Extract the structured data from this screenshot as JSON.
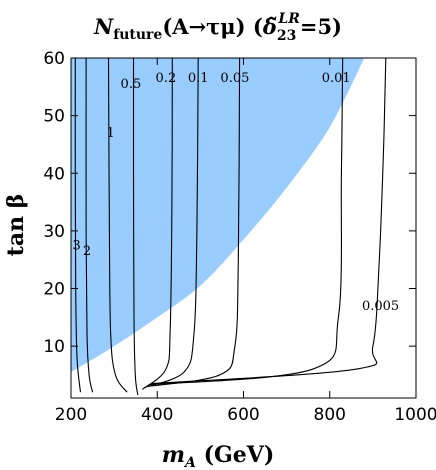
{
  "chart_data": {
    "type": "contour",
    "title": {
      "prefix": "N",
      "sub": "future",
      "main": "(A→τμ) (",
      "delta": "δ̃",
      "delta_sub": "23",
      "delta_sup": "LR",
      "tail": "=5)"
    },
    "xlabel": {
      "var": "m",
      "sub": "A",
      "unit": " (GeV)"
    },
    "ylabel": {
      "text": "tan β"
    },
    "xlim": [
      200,
      1000
    ],
    "ylim": [
      1,
      60
    ],
    "xticks": [
      200,
      400,
      600,
      800,
      1000
    ],
    "yticks": [
      10,
      20,
      30,
      40,
      50,
      60
    ],
    "grid": false,
    "excluded_region": {
      "color": "#99ccff",
      "boundary": [
        [
          200,
          5.5
        ],
        [
          300,
          10
        ],
        [
          400,
          15
        ],
        [
          500,
          20.5
        ],
        [
          600,
          28.5
        ],
        [
          700,
          37.5
        ],
        [
          800,
          48
        ],
        [
          880,
          60
        ]
      ]
    },
    "contours": [
      {
        "label": "3",
        "label_at": [
          213,
          27.5
        ],
        "points": [
          [
            222,
            2
          ],
          [
            214,
            8
          ],
          [
            211,
            20
          ],
          [
            210,
            40
          ],
          [
            210,
            60
          ]
        ]
      },
      {
        "label": "2",
        "label_at": [
          237,
          26.5
        ],
        "points": [
          [
            250,
            2
          ],
          [
            242,
            5
          ],
          [
            237,
            12
          ],
          [
            235,
            30
          ],
          [
            235,
            60
          ]
        ]
      },
      {
        "label": "1",
        "label_at": [
          292,
          47
        ],
        "points": [
          [
            330,
            2
          ],
          [
            303,
            5
          ],
          [
            292,
            12
          ],
          [
            289,
            30
          ],
          [
            287,
            60
          ]
        ]
      },
      {
        "label": "0.5",
        "label_at": [
          339,
          55.5
        ],
        "points": [
          [
            355,
            1.5
          ],
          [
            349,
            5
          ],
          [
            346,
            15
          ],
          [
            345,
            40
          ],
          [
            345,
            60
          ]
        ]
      },
      {
        "label": "0.2",
        "label_at": [
          420,
          56.5
        ],
        "points": [
          [
            365,
            2.5
          ],
          [
            420,
            6
          ],
          [
            430,
            13
          ],
          [
            434,
            35
          ],
          [
            435,
            60
          ]
        ]
      },
      {
        "label": "0.1",
        "label_at": [
          495,
          56.5
        ],
        "points": [
          [
            370,
            2.8
          ],
          [
            462,
            5.5
          ],
          [
            485,
            12
          ],
          [
            492,
            30
          ],
          [
            495,
            60
          ]
        ]
      },
      {
        "label": "0.05",
        "label_at": [
          580,
          56.5
        ],
        "points": [
          [
            375,
            3
          ],
          [
            545,
            5
          ],
          [
            580,
            10
          ],
          [
            588,
            25
          ],
          [
            591,
            60
          ]
        ]
      },
      {
        "label": "0.01",
        "label_at": [
          815,
          56.5
        ],
        "points": [
          [
            380,
            3.3
          ],
          [
            760,
            6
          ],
          [
            820,
            15
          ],
          [
            827,
            40
          ],
          [
            830,
            60
          ]
        ]
      },
      {
        "label": "0.005",
        "label_at": [
          918,
          17
        ],
        "points": [
          [
            385,
            3.5
          ],
          [
            860,
            6
          ],
          [
            900,
            10
          ],
          [
            915,
            25
          ],
          [
            925,
            45
          ],
          [
            930,
            60
          ]
        ]
      }
    ]
  }
}
